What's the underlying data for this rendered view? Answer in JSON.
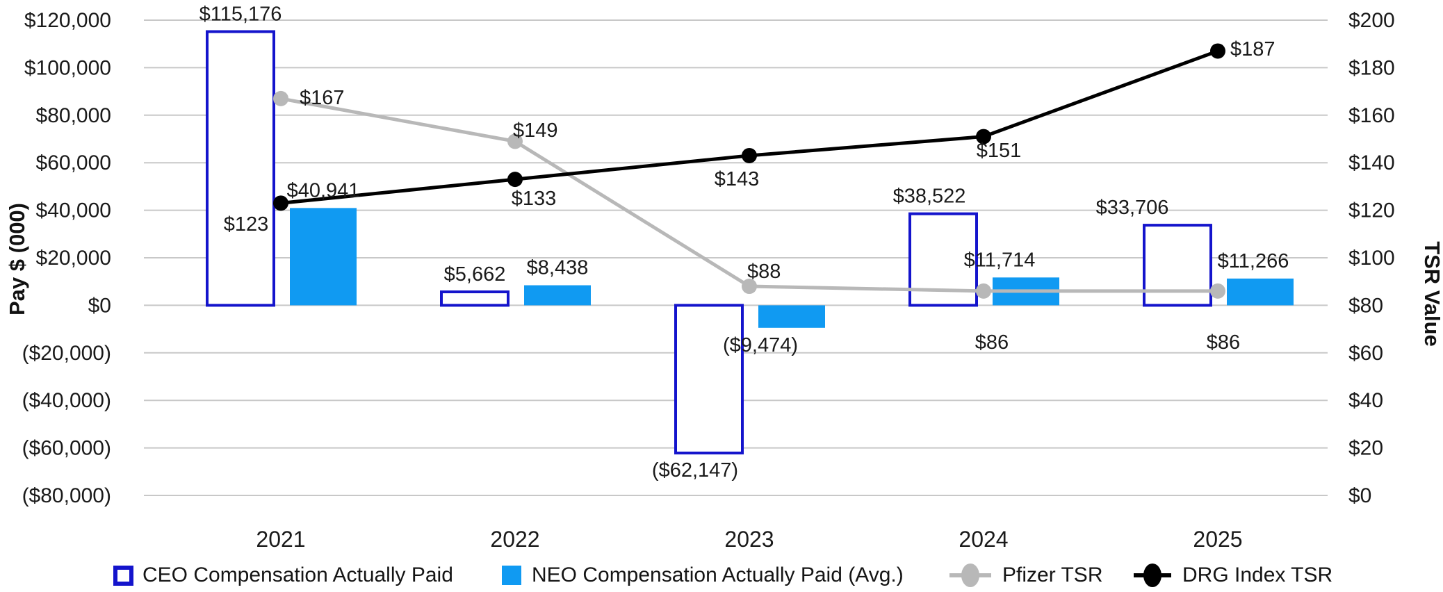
{
  "chart_data": {
    "type": "combo",
    "title": "",
    "categories": [
      "2021",
      "2022",
      "2023",
      "2024",
      "2025"
    ],
    "series": [
      {
        "name": "CEO Compensation Actually Paid",
        "type": "bar",
        "axis": "left",
        "style": "hollow",
        "values": [
          115176,
          5662,
          -62147,
          38522,
          33706
        ],
        "labels": [
          "$115,176",
          "$5,662",
          "($62,147)",
          "$38,522",
          "$33,706"
        ]
      },
      {
        "name": "NEO Compensation Actually Paid (Avg.)",
        "type": "bar",
        "axis": "left",
        "style": "solid",
        "values": [
          40941,
          8438,
          -9474,
          11714,
          11266
        ],
        "labels": [
          "$40,941",
          "$8,438",
          "($9,474)",
          "$11,714",
          "$11,266"
        ]
      },
      {
        "name": "Pfizer TSR",
        "type": "line",
        "axis": "right",
        "marker": "circle",
        "values": [
          167,
          149,
          88,
          86,
          86
        ],
        "labels": [
          "$167",
          "$149",
          "$88",
          "$86",
          "$86"
        ]
      },
      {
        "name": "DRG Index TSR",
        "type": "line",
        "axis": "right",
        "marker": "circle",
        "values": [
          123,
          133,
          143,
          151,
          187
        ],
        "labels": [
          "$123",
          "$133",
          "$143",
          "$151",
          "$187"
        ]
      }
    ],
    "left_axis": {
      "title": "Pay $ (000)",
      "min": -80000,
      "max": 120000,
      "step": 20000,
      "tick_labels": [
        "$120,000",
        "$100,000",
        "$80,000",
        "$60,000",
        "$40,000",
        "$20,000",
        "$0",
        "($20,000)",
        "($40,000)",
        "($60,000)",
        "($80,000)"
      ]
    },
    "right_axis": {
      "title": "TSR Value",
      "min": 0,
      "max": 200,
      "step": 20,
      "tick_labels": [
        "$200",
        "$180",
        "$160",
        "$140",
        "$120",
        "$100",
        "$80",
        "$60",
        "$40",
        "$20",
        "$0"
      ]
    },
    "grid": true,
    "legend_position": "bottom",
    "colors": {
      "ceo_outline": "#1414cc",
      "neo_fill": "#109af2",
      "pfizer_line": "#b8b8b8",
      "drg_line": "#000000",
      "gridline": "#c8c8c8",
      "text": "#1a1a1a"
    }
  }
}
